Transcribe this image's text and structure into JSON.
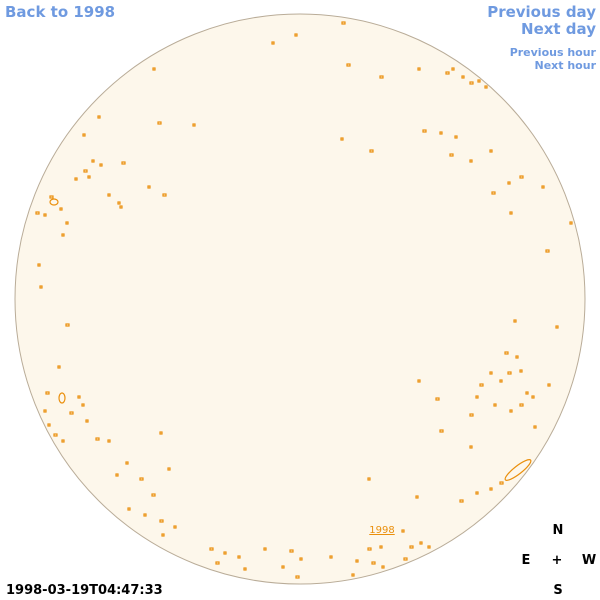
{
  "nav": {
    "back": "Back to 1998",
    "previous_day": "Previous day",
    "next_day": "Next day",
    "previous_hour": "Previous hour",
    "next_hour": "Next hour"
  },
  "disk_label": "1998",
  "timestamp": "1998-03-19T04:47:33",
  "compass": {
    "north": "N",
    "east": "E",
    "center": "+",
    "west": "W",
    "south": "S"
  }
}
